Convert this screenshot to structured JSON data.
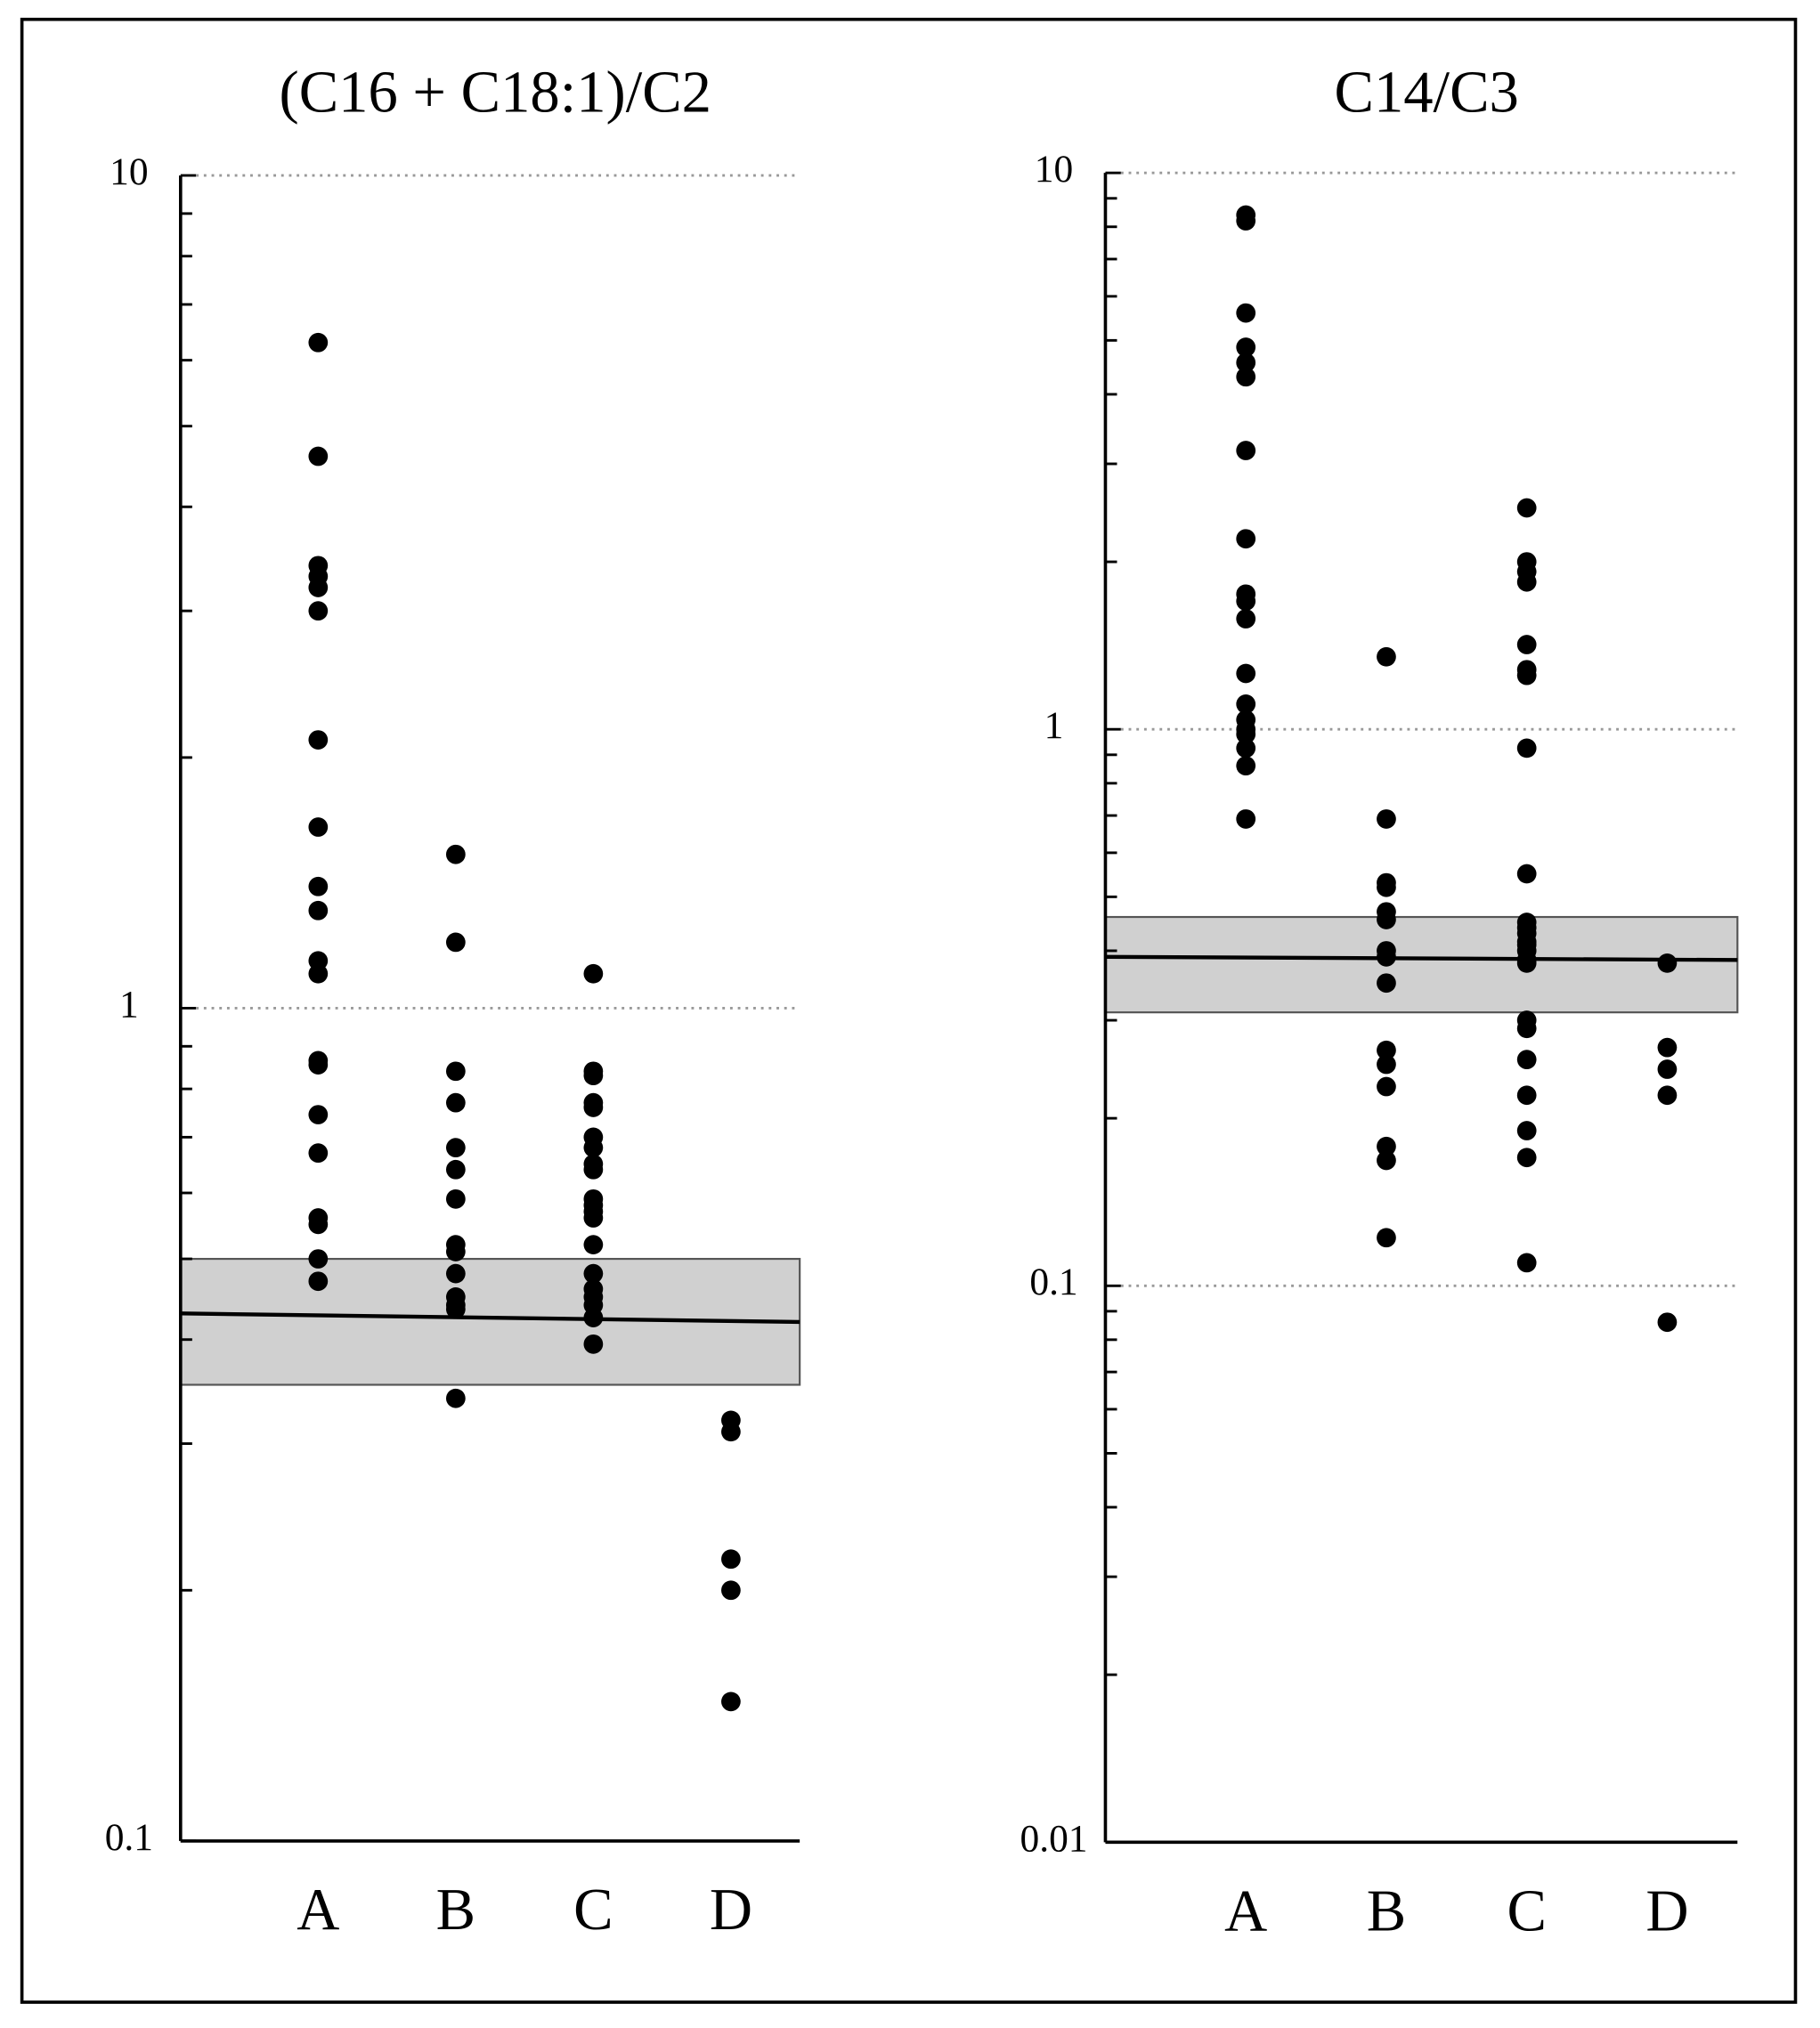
{
  "chart_data": [
    {
      "type": "strip",
      "title": "(C16 + C18:1)/C2",
      "log_scale": true,
      "grid": true,
      "color": "#000000",
      "categories": [
        "A",
        "B",
        "C",
        "D"
      ],
      "values": [
        [
          6.3,
          4.6,
          3.4,
          3.3,
          3.2,
          3.0,
          2.1,
          1.65,
          1.4,
          1.31,
          1.14,
          1.1,
          0.865,
          0.855,
          0.745,
          0.67,
          0.56,
          0.55,
          0.5,
          0.47
        ],
        [
          1.53,
          1.2,
          0.84,
          0.77,
          0.68,
          0.64,
          0.59,
          0.52,
          0.51,
          0.48,
          0.45,
          0.44,
          0.435,
          0.34
        ],
        [
          1.1,
          0.84,
          0.83,
          0.77,
          0.76,
          0.7,
          0.68,
          0.65,
          0.64,
          0.59,
          0.58,
          0.57,
          0.56,
          0.52,
          0.48,
          0.46,
          0.45,
          0.44,
          0.425,
          0.395
        ],
        [
          0.32,
          0.31,
          0.218,
          0.2,
          0.147
        ]
      ],
      "band": {
        "low": 0.353,
        "high": 0.5,
        "color": "#d0d0d0"
      },
      "median_line": [
        0.43,
        0.42
      ],
      "ylim": [
        0.1,
        10
      ],
      "yticks": [
        0.1,
        1,
        10
      ],
      "minor_yticks": [
        0.2,
        0.3,
        0.4,
        0.5,
        0.6,
        0.7,
        0.8,
        0.9,
        2,
        3,
        4,
        5,
        6,
        7,
        8,
        9
      ]
    },
    {
      "type": "strip",
      "title": "C14/C3",
      "log_scale": true,
      "grid": true,
      "color": "#000000",
      "categories": [
        "A",
        "B",
        "C",
        "D"
      ],
      "values": [
        [
          8.4,
          8.2,
          5.6,
          4.86,
          4.56,
          4.3,
          3.17,
          2.2,
          1.75,
          1.7,
          1.58,
          1.26,
          1.11,
          1.04,
          1.0,
          0.98,
          0.925,
          0.86,
          0.69
        ],
        [
          1.35,
          0.69,
          0.53,
          0.52,
          0.47,
          0.455,
          0.4,
          0.39,
          0.35,
          0.265,
          0.25,
          0.228,
          0.178,
          0.168,
          0.122
        ],
        [
          2.5,
          2.0,
          1.92,
          1.84,
          1.42,
          1.28,
          1.25,
          0.925,
          0.55,
          0.45,
          0.44,
          0.43,
          0.415,
          0.41,
          0.4,
          0.385,
          0.38,
          0.3,
          0.29,
          0.255,
          0.22,
          0.19,
          0.17,
          0.11
        ],
        [
          0.38,
          0.268,
          0.245,
          0.22,
          0.086
        ]
      ],
      "band": {
        "low": 0.31,
        "high": 0.46,
        "color": "#d0d0d0"
      },
      "median_line": [
        0.39,
        0.385
      ],
      "ylim": [
        0.01,
        10
      ],
      "yticks": [
        0.01,
        0.1,
        1,
        10
      ],
      "minor_yticks": [
        0.02,
        0.03,
        0.04,
        0.05,
        0.06,
        0.07,
        0.08,
        0.09,
        0.2,
        0.3,
        0.4,
        0.5,
        0.6,
        0.7,
        0.8,
        0.9,
        2,
        3,
        4,
        5,
        6,
        7,
        8,
        9
      ]
    }
  ]
}
